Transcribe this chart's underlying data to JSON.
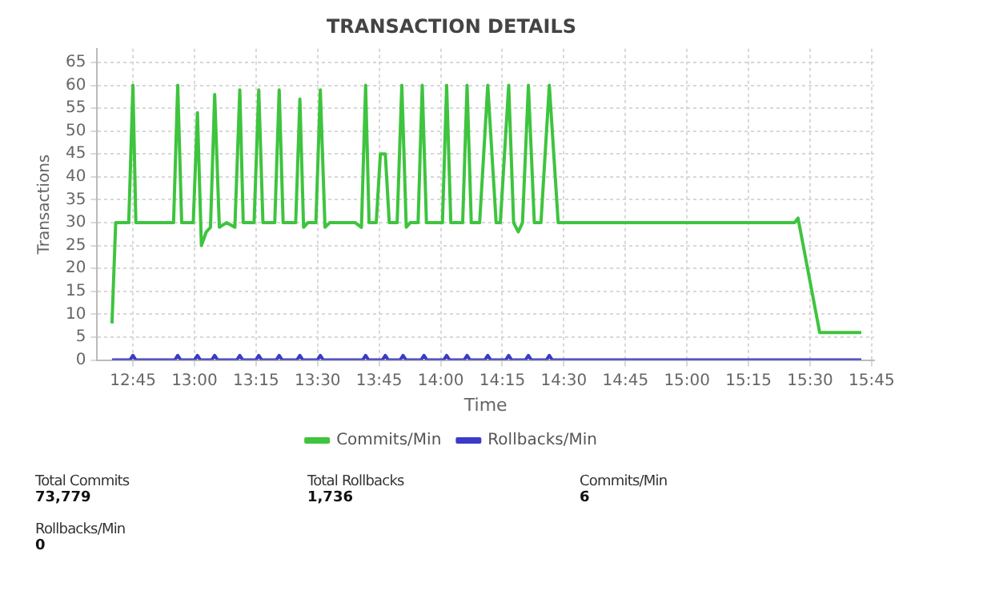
{
  "chart_data": {
    "type": "line",
    "title": "TRANSACTION DETAILS",
    "xlabel": "Time",
    "ylabel": "Transactions",
    "xlim": [
      12.605,
      15.76
    ],
    "xticks": [
      {
        "value": 12.75,
        "label": "12:45"
      },
      {
        "value": 13,
        "label": "13:00"
      },
      {
        "value": 13.25,
        "label": "13:15"
      },
      {
        "value": 13.5,
        "label": "13:30"
      },
      {
        "value": 13.75,
        "label": "13:45"
      },
      {
        "value": 14,
        "label": "14:00"
      },
      {
        "value": 14.25,
        "label": "14:15"
      },
      {
        "value": 14.5,
        "label": "14:30"
      },
      {
        "value": 14.75,
        "label": "14:45"
      },
      {
        "value": 15,
        "label": "15:00"
      },
      {
        "value": 15.25,
        "label": "15:15"
      },
      {
        "value": 15.5,
        "label": "15:30"
      },
      {
        "value": 15.75,
        "label": "15:45"
      }
    ],
    "ylim": [
      0,
      68
    ],
    "yticks": [
      0,
      5,
      10,
      15,
      20,
      25,
      30,
      35,
      40,
      45,
      50,
      55,
      60,
      65
    ],
    "grid": true,
    "legend": "bottom",
    "marker": "none",
    "line_style": "solid",
    "series": [
      {
        "name": "Commits/Min",
        "color": "#3ec43e",
        "x": [
          12.665,
          12.68,
          12.733,
          12.75,
          12.762,
          12.915,
          12.932,
          12.948,
          12.995,
          13.012,
          13.028,
          13.048,
          13.065,
          13.082,
          13.101,
          13.13,
          13.164,
          13.184,
          13.198,
          13.242,
          13.261,
          13.278,
          13.326,
          13.344,
          13.36,
          13.411,
          13.428,
          13.443,
          13.46,
          13.493,
          13.511,
          13.53,
          13.549,
          13.653,
          13.678,
          13.695,
          13.709,
          13.738,
          13.755,
          13.775,
          13.791,
          13.823,
          13.842,
          13.86,
          13.876,
          13.908,
          13.925,
          13.942,
          14.007,
          14.024,
          14.041,
          14.089,
          14.107,
          14.124,
          14.158,
          14.191,
          14.225,
          14.242,
          14.276,
          14.296,
          14.315,
          14.332,
          14.356,
          14.38,
          14.407,
          14.441,
          14.477,
          15.437,
          15.451,
          15.539,
          15.708
        ],
        "values": [
          8,
          30,
          30,
          60,
          30,
          30,
          60,
          30,
          30,
          54,
          25,
          28,
          29,
          58,
          29,
          30,
          29,
          59,
          30,
          30,
          59,
          30,
          30,
          59,
          30,
          30,
          57,
          29,
          30,
          30,
          59,
          29,
          30,
          30,
          29,
          60,
          30,
          30,
          45,
          45,
          30,
          30,
          60,
          29,
          30,
          30,
          60,
          30,
          30,
          60,
          30,
          30,
          60,
          30,
          30,
          60,
          30,
          30,
          60,
          30,
          28,
          30,
          60,
          30,
          30,
          60,
          30,
          30,
          31,
          6,
          6
        ]
      },
      {
        "name": "Rollbacks/Min",
        "color": "#3b3bc8",
        "x": [
          12.665,
          12.738,
          12.75,
          12.762,
          12.92,
          12.932,
          12.944,
          13.0,
          13.012,
          13.024,
          13.07,
          13.082,
          13.094,
          13.172,
          13.184,
          13.196,
          13.249,
          13.261,
          13.273,
          13.332,
          13.344,
          13.356,
          13.416,
          13.428,
          13.44,
          13.499,
          13.511,
          13.523,
          13.683,
          13.695,
          13.707,
          13.763,
          13.775,
          13.787,
          13.835,
          13.847,
          13.859,
          13.92,
          13.932,
          13.944,
          14.012,
          14.024,
          14.036,
          14.095,
          14.107,
          14.119,
          14.179,
          14.191,
          14.203,
          14.264,
          14.276,
          14.288,
          14.344,
          14.356,
          14.368,
          14.429,
          14.441,
          14.453,
          15.708
        ],
        "values": [
          0,
          0,
          1,
          0,
          0,
          1,
          0,
          0,
          1,
          0,
          0,
          1,
          0,
          0,
          1,
          0,
          0,
          1,
          0,
          0,
          1,
          0,
          0,
          1,
          0,
          0,
          1,
          0,
          0,
          1,
          0,
          0,
          1,
          0,
          0,
          1,
          0,
          0,
          1,
          0,
          0,
          1,
          0,
          0,
          1,
          0,
          0,
          1,
          0,
          0,
          1,
          0,
          0,
          1,
          0,
          0,
          1,
          0,
          0
        ]
      }
    ],
    "annotations": [
      "Total Commits",
      "73,779",
      "Total Rollbacks",
      "1,736",
      "Commits/Min",
      "6",
      "Rollbacks/Min",
      "0"
    ]
  }
}
